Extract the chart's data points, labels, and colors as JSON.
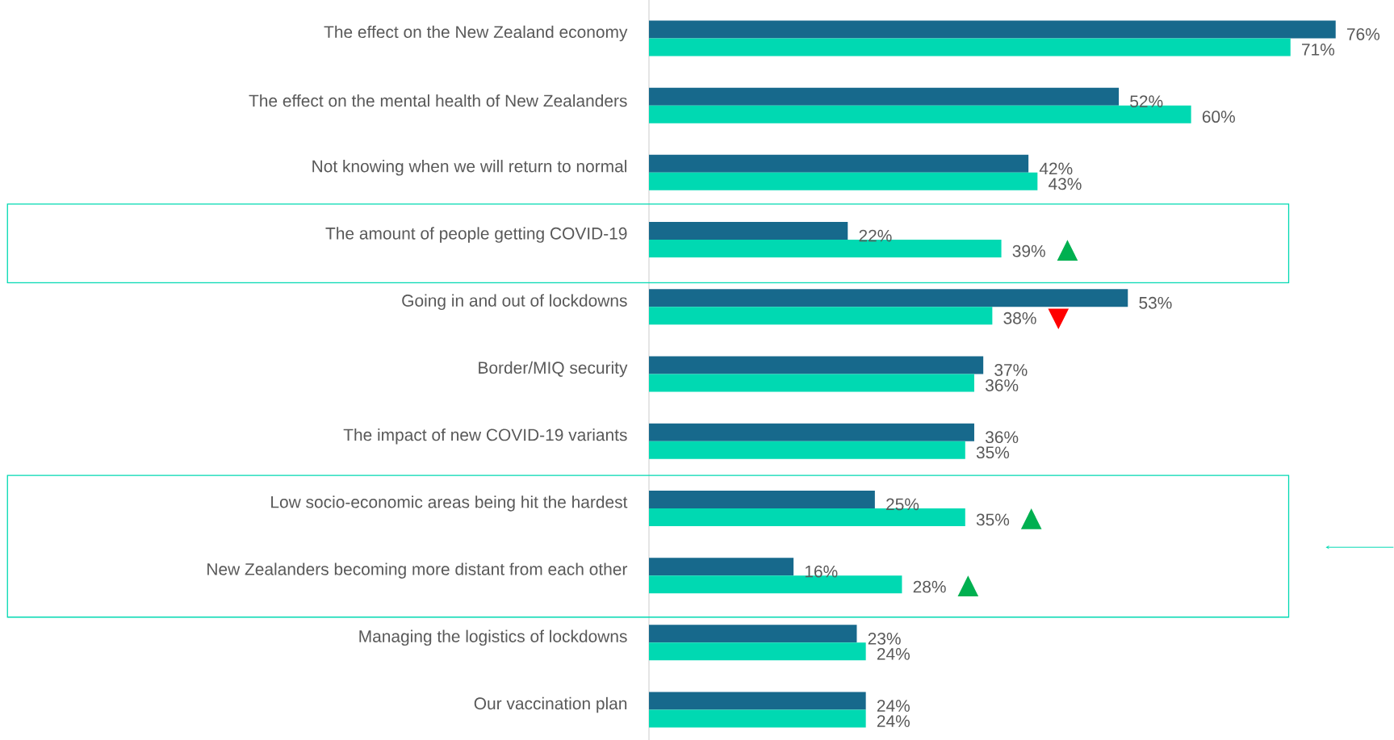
{
  "chart_data": {
    "type": "bar",
    "orientation": "horizontal",
    "categories": [
      "The effect on the New Zealand economy",
      "The effect on the mental health of New Zealanders",
      "Not knowing when we will return to normal",
      "The amount of people getting COVID-19",
      "Going in and out of lockdowns",
      "Border/MIQ security",
      "The impact of new COVID-19 variants",
      "Low socio-economic areas being hit the hardest",
      "New Zealanders becoming more distant from each other",
      "Managing the logistics of lockdowns",
      "Our vaccination plan"
    ],
    "series": [
      {
        "color": "#17698c",
        "values": [
          76,
          52,
          42,
          22,
          53,
          37,
          36,
          25,
          16,
          23,
          24
        ],
        "value_labels": [
          "76%",
          "52%",
          "42%",
          "22%",
          "53%",
          "37%",
          "36%",
          "25%",
          "16%",
          "23%",
          "24%"
        ]
      },
      {
        "color": "#00d9b2",
        "values": [
          71,
          60,
          43,
          39,
          38,
          36,
          35,
          35,
          28,
          24,
          24
        ],
        "value_labels": [
          "71%",
          "60%",
          "43%",
          "39%",
          "38%",
          "36%",
          "35%",
          "35%",
          "28%",
          "24%",
          "24%"
        ]
      }
    ],
    "annotations": [
      "▲",
      "▼",
      "▲",
      "▲"
    ]
  }
}
